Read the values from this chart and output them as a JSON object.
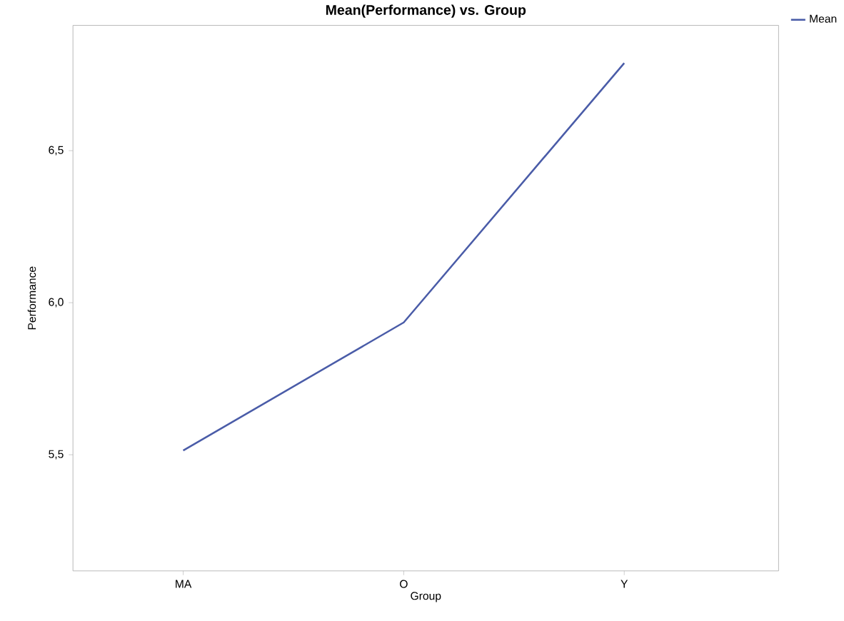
{
  "chart_data": {
    "type": "line",
    "title": "Mean(Performance) vs. Group",
    "xlabel": "Group",
    "ylabel": "Performance",
    "categories": [
      "MA",
      "O",
      "Y"
    ],
    "series": [
      {
        "name": "Mean",
        "color": "#4a5ca8",
        "values": [
          5.514,
          5.935,
          6.788
        ]
      }
    ],
    "ylim": [
      5.118,
      6.912
    ],
    "yticks": [
      {
        "value": 5.5,
        "label": "5,5"
      },
      {
        "value": 6.0,
        "label": "6,0"
      },
      {
        "value": 6.5,
        "label": "6,5"
      }
    ],
    "legend": "top right",
    "grid": false,
    "marker": "none",
    "line_style": "solid"
  }
}
